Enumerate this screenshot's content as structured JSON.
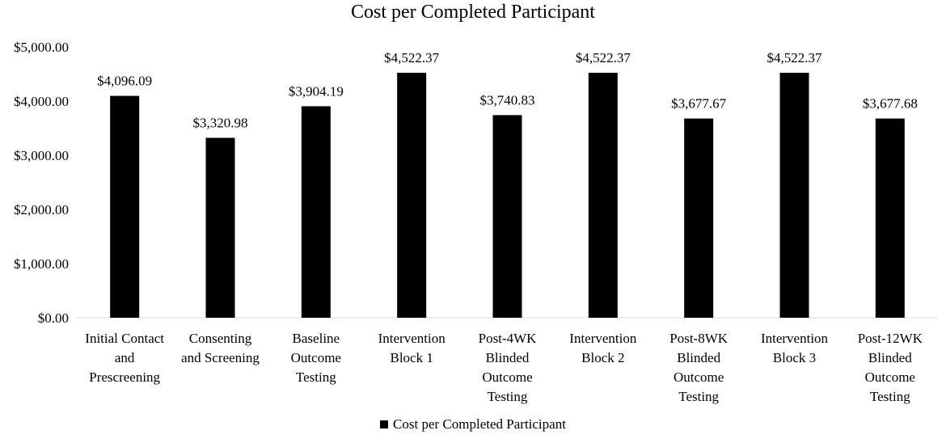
{
  "chart_data": {
    "type": "bar",
    "title": "Cost per Completed Participant",
    "xlabel": "",
    "ylabel": "",
    "ylim": [
      0,
      5000
    ],
    "yticks": [
      "$0.00",
      "$1,000.00",
      "$2,000.00",
      "$3,000.00",
      "$4,000.00",
      "$5,000.00"
    ],
    "ytick_values": [
      0,
      1000,
      2000,
      3000,
      4000,
      5000
    ],
    "grid": false,
    "legend_position": "bottom",
    "categories": [
      [
        "Initial Contact",
        "and",
        "Prescreening"
      ],
      [
        "Consenting",
        "and Screening"
      ],
      [
        "Baseline",
        "Outcome",
        "Testing"
      ],
      [
        "Intervention",
        "Block 1"
      ],
      [
        "Post-4WK",
        "Blinded",
        "Outcome",
        "Testing"
      ],
      [
        "Intervention",
        "Block 2"
      ],
      [
        "Post-8WK",
        "Blinded",
        "Outcome",
        "Testing"
      ],
      [
        "Intervention",
        "Block 3"
      ],
      [
        "Post-12WK",
        "Blinded",
        "Outcome",
        "Testing"
      ]
    ],
    "series": [
      {
        "name": "Cost per Completed Participant",
        "color": "#000000",
        "values": [
          4096.09,
          3320.98,
          3904.19,
          4522.37,
          3740.83,
          4522.37,
          3677.67,
          4522.37,
          3677.68
        ],
        "data_labels": [
          "$4,096.09",
          "$3,320.98",
          "$3,904.19",
          "$4,522.37",
          "$3,740.83",
          "$4,522.37",
          "$3,677.67",
          "$4,522.37",
          "$3,677.68"
        ]
      }
    ]
  }
}
